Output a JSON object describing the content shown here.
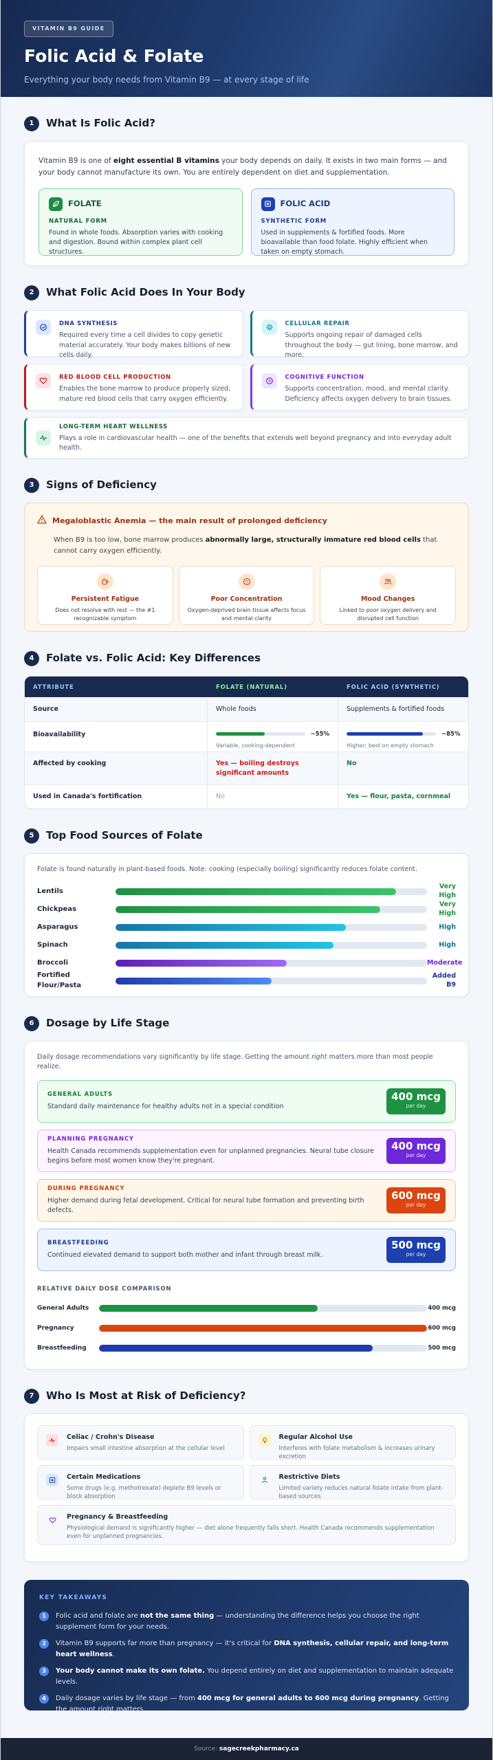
{
  "hero": {
    "badge": "VITAMIN B9 GUIDE",
    "title": "Folic Acid & Folate",
    "subtitle": "Everything your body needs from Vitamin B9 — at every stage of life"
  },
  "s1": {
    "num": "1",
    "title": "What Is Folic Acid?",
    "intro_a": "Vitamin B9 is one of ",
    "intro_b": "eight essential B vitamins",
    "intro_c": " your body depends on daily. It exists in two main forms — and your body cannot manufacture its own. You are entirely dependent on diet and supplementation.",
    "folate": {
      "name": "FOLATE",
      "sub": "NATURAL FORM",
      "text": "Found in whole foods. Absorption varies with cooking and digestion. Bound within complex plant cell structures."
    },
    "folic": {
      "name": "FOLIC ACID",
      "sub": "SYNTHETIC FORM",
      "text": "Used in supplements & fortified foods. More bioavailable than food folate. Highly efficient when taken on empty stomach."
    }
  },
  "s2": {
    "num": "2",
    "title": "What Folic Acid Does In Your Body",
    "items": [
      {
        "title": "DNA SYNTHESIS",
        "text": "Required every time a cell divides to copy genetic material accurately. Your body makes billions of new cells daily.",
        "icon": "dna-icon"
      },
      {
        "title": "CELLULAR REPAIR",
        "text": "Supports ongoing repair of damaged cells throughout the body — gut lining, bone marrow, and more.",
        "icon": "repair-icon"
      },
      {
        "title": "RED BLOOD CELL PRODUCTION",
        "text": "Enables the bone marrow to produce properly sized, mature red blood cells that carry oxygen efficiently.",
        "icon": "heart-icon"
      },
      {
        "title": "COGNITIVE FUNCTION",
        "text": "Supports concentration, mood, and mental clarity. Deficiency affects oxygen delivery to brain tissues.",
        "icon": "brain-icon"
      },
      {
        "title": "LONG-TERM HEART WELLNESS",
        "text": "Plays a role in cardiovascular health — one of the benefits that extends well beyond pregnancy and into everyday adult health.",
        "icon": "pulse-icon"
      }
    ]
  },
  "s3": {
    "num": "3",
    "title": "Signs of Deficiency",
    "alert_title": "Megaloblastic Anemia — the main result of prolonged deficiency",
    "text_a": "When B9 is too low, bone marrow produces ",
    "text_b": "abnormally large, structurally immature red blood cells",
    "text_c": " that cannot carry oxygen efficiently.",
    "symptoms": [
      {
        "title": "Persistent Fatigue",
        "text": "Does not resolve with rest — the #1 recognizable symptom"
      },
      {
        "title": "Poor Concentration",
        "text": "Oxygen-deprived brain tissue affects focus and mental clarity"
      },
      {
        "title": "Mood Changes",
        "text": "Linked to poor oxygen delivery and disrupted cell function"
      }
    ]
  },
  "s4": {
    "num": "4",
    "title": "Folate vs. Folic Acid: Key Differences",
    "headers": [
      "ATTRIBUTE",
      "FOLATE (NATURAL)",
      "FOLIC ACID (SYNTHETIC)"
    ],
    "source": [
      "Source",
      "Whole foods",
      "Supplements & fortified foods"
    ],
    "bio_label": "Bioavailability",
    "bio_folate": {
      "value": 0.55,
      "label": "~55%",
      "note": "Variable, cooking-dependent",
      "color": "#1f9144"
    },
    "bio_acid": {
      "value": 0.85,
      "label": "~85%",
      "note": "Higher; best on empty stomach",
      "color": "#1e40af"
    },
    "cooking": [
      "Affected by cooking",
      "Yes — boiling destroys significant amounts",
      "No"
    ],
    "fortify": [
      "Used in Canada's fortification",
      "No",
      "Yes — flour, pasta, cornmeal"
    ]
  },
  "s5": {
    "num": "5",
    "title": "Top Food Sources of Folate",
    "intro": "Folate is found naturally in plant-based foods. Note: cooking (especially boiling) significantly reduces folate content.",
    "foods": [
      {
        "name": "Lentils",
        "level": "Very High",
        "value": 0.9,
        "c1": "#1f9144",
        "c2": "#3cc46a",
        "lc": "#1f9144"
      },
      {
        "name": "Chickpeas",
        "level": "Very High",
        "value": 0.85,
        "c1": "#1f9144",
        "c2": "#3cc46a",
        "lc": "#1f9144"
      },
      {
        "name": "Asparagus",
        "level": "High",
        "value": 0.74,
        "c1": "#1677a6",
        "c2": "#22c3e6",
        "lc": "#0e7490"
      },
      {
        "name": "Spinach",
        "level": "High",
        "value": 0.7,
        "c1": "#1677a6",
        "c2": "#22c3e6",
        "lc": "#0e7490"
      },
      {
        "name": "Broccoli",
        "level": "Moderate",
        "value": 0.55,
        "c1": "#5b21b6",
        "c2": "#a06af5",
        "lc": "#6d28d9"
      },
      {
        "name": "Fortified Flour/Pasta",
        "level": "Added B9",
        "value": 0.5,
        "c1": "#1e3aaf",
        "c2": "#4f8df5",
        "lc": "#1e3a8a"
      }
    ]
  },
  "s6": {
    "num": "6",
    "title": "Dosage by Life Stage",
    "intro_a": "Daily dosage recommendations vary significantly by life stage. Getting the amount ",
    "intro_em": "right",
    "intro_b": " matters more than most people realize.",
    "stages": [
      {
        "label": "GENERAL ADULTS",
        "text": "Standard daily maintenance for healthy adults not in a special condition",
        "amount": "400 mcg",
        "unit": "per day"
      },
      {
        "label": "PLANNING PREGNANCY",
        "text": "Health Canada recommends supplementation even for unplanned pregnancies. Neural tube closure begins before most women know they're pregnant.",
        "amount": "400 mcg",
        "unit": "per day"
      },
      {
        "label": "DURING PREGNANCY",
        "text": "Higher demand during fetal development. Critical for neural tube formation and preventing birth defects.",
        "amount": "600 mcg",
        "unit": "per day"
      },
      {
        "label": "BREASTFEEDING",
        "text": "Continued elevated demand to support both mother and infant through breast milk.",
        "amount": "500 mcg",
        "unit": "per day"
      }
    ],
    "cmp_title": "RELATIVE DAILY DOSE COMPARISON",
    "cmp": [
      {
        "name": "General Adults",
        "value": 400,
        "label": "400 mcg",
        "color": "#1f9144"
      },
      {
        "name": "Pregnancy",
        "value": 600,
        "label": "600 mcg",
        "color": "#dc4410"
      },
      {
        "name": "Breastfeeding",
        "value": 500,
        "label": "500 mcg",
        "color": "#1e3aaf"
      }
    ],
    "cmp_max": 600
  },
  "s7": {
    "num": "7",
    "title": "Who Is Most at Risk of Deficiency?",
    "items": [
      {
        "title": "Celiac / Crohn's Disease",
        "text": "Impairs small intestine absorption at the cellular level"
      },
      {
        "title": "Regular Alcohol Use",
        "text": "Interferes with folate metabolism & increases urinary excretion"
      },
      {
        "title": "Certain Medications",
        "text": "Some drugs (e.g. methotrexate) deplete B9 levels or block absorption"
      },
      {
        "title": "Restrictive Diets",
        "text": "Limited variety reduces natural folate intake from plant-based sources"
      },
      {
        "title": "Pregnancy & Breastfeeding",
        "text": "Physiological demand is significantly higher — diet alone frequently falls short. Health Canada recommends supplementation even for unplanned pregnancies."
      }
    ]
  },
  "takeaways": {
    "title": "KEY TAKEAWAYS",
    "items": [
      {
        "num": "1",
        "a": "Folic acid and folate are ",
        "b": "not the same thing",
        "c": " — understanding the difference helps you choose the right supplement form for your needs."
      },
      {
        "num": "2",
        "a": "Vitamin B9 supports far more than pregnancy — it's critical for ",
        "b": "DNA synthesis, cellular repair, and long-term heart wellness",
        "c": "."
      },
      {
        "num": "3",
        "a": "",
        "b": "Your body cannot make its own folate.",
        "c": " You depend entirely on diet and supplementation to maintain adequate levels."
      },
      {
        "num": "4",
        "a": "Daily dosage varies by life stage — from ",
        "b": "400 mcg for general adults to 600 mcg during pregnancy",
        "c": ". Getting the amount right matters."
      }
    ]
  },
  "footer": {
    "prefix": "Source: ",
    "site": "sagecreekpharmacy.ca"
  }
}
